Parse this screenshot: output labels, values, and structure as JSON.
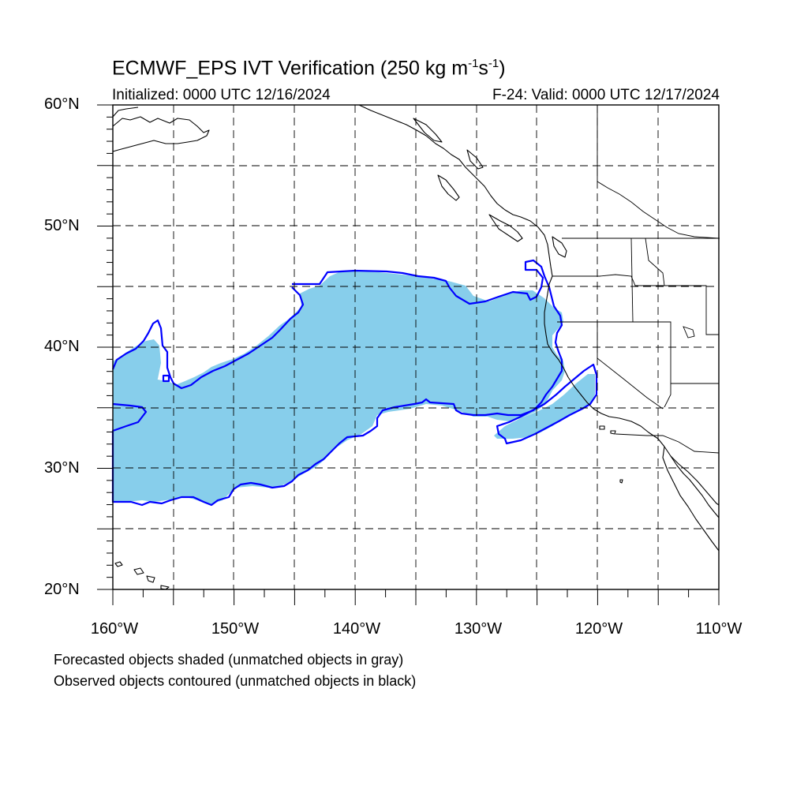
{
  "title": {
    "main": "ECMWF_EPS IVT Verification (250 kg m",
    "sup1": "-1",
    "mid": "s",
    "sup2": "-1",
    "end": ")"
  },
  "subtitle_left": "Initialized: 0000 UTC 12/16/2024",
  "subtitle_right": "F-24: Valid: 0000 UTC 12/17/2024",
  "footnote_1": "Forecasted objects shaded (unmatched objects in gray)",
  "footnote_2": "Observed objects contoured (unmatched objects in black)",
  "map": {
    "lon_range": [
      -160,
      -110
    ],
    "lat_range": [
      20,
      60
    ],
    "x_tick_labels": [
      "160°W",
      "150°W",
      "140°W",
      "130°W",
      "120°W",
      "110°W"
    ],
    "y_tick_labels": [
      "60°N",
      "50°N",
      "40°N",
      "30°N",
      "20°N"
    ],
    "grid": "dashed, every 5 degrees",
    "forecast_fill_color": "#87ceeb",
    "observed_contour_color": "#0000ff",
    "coastline_color": "#000000"
  }
}
